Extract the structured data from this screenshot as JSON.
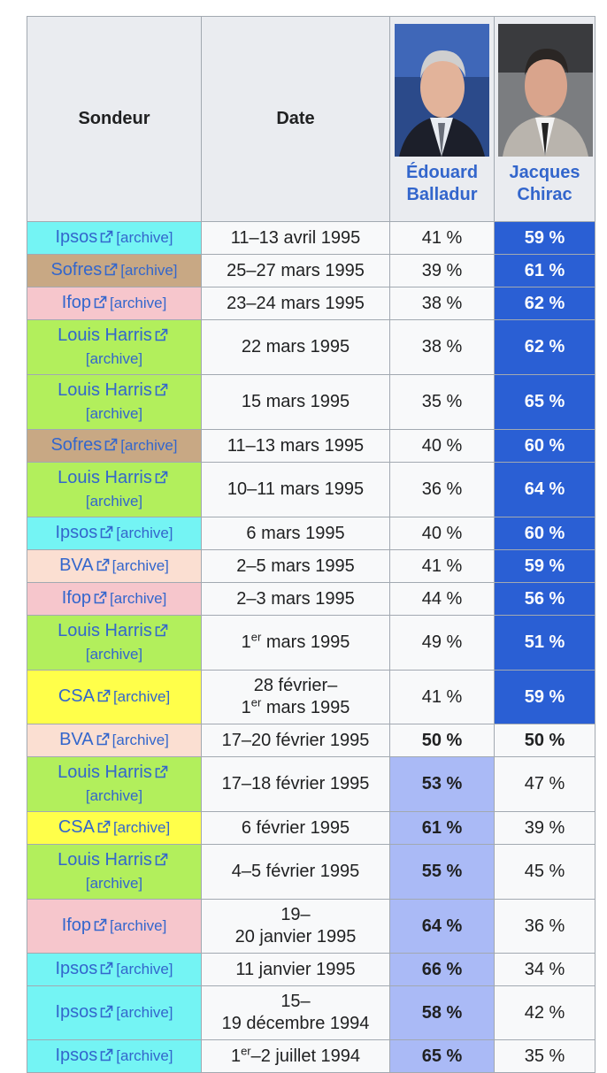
{
  "table": {
    "headers": [
      "Sondeur",
      "Date",
      "Édouard Balladur",
      "Jacques Chirac"
    ],
    "rows": [
      {
        "pollster": "Ipsos",
        "archive": "[archive]",
        "color": "#74f4f4",
        "date": "11–13 avril 1995",
        "balladur": {
          "text": "41 %"
        },
        "chirac": {
          "text": "59 %",
          "bg": "#2a5fd4",
          "fg": "#ffffff",
          "bold": true
        }
      },
      {
        "pollster": "Sofres",
        "archive": "[archive]",
        "color": "#c8a884",
        "date": "25–27 mars 1995",
        "balladur": {
          "text": "39 %"
        },
        "chirac": {
          "text": "61 %",
          "bg": "#2a5fd4",
          "fg": "#ffffff",
          "bold": true
        }
      },
      {
        "pollster": "Ifop",
        "archive": "[archive]",
        "color": "#f6c6cc",
        "date": "23–24 mars 1995",
        "balladur": {
          "text": "38 %"
        },
        "chirac": {
          "text": "62 %",
          "bg": "#2a5fd4",
          "fg": "#ffffff",
          "bold": true
        }
      },
      {
        "pollster": "Louis Harris",
        "archive": "[archive]",
        "color": "#b2ef5c",
        "date": "22 mars 1995",
        "balladur": {
          "text": "38 %"
        },
        "chirac": {
          "text": "62 %",
          "bg": "#2a5fd4",
          "fg": "#ffffff",
          "bold": true
        }
      },
      {
        "pollster": "Louis Harris",
        "archive": "[archive]",
        "color": "#b2ef5c",
        "date": "15 mars 1995",
        "balladur": {
          "text": "35 %"
        },
        "chirac": {
          "text": "65 %",
          "bg": "#2a5fd4",
          "fg": "#ffffff",
          "bold": true
        }
      },
      {
        "pollster": "Sofres",
        "archive": "[archive]",
        "color": "#c8a884",
        "date": "11–13 mars 1995",
        "balladur": {
          "text": "40 %"
        },
        "chirac": {
          "text": "60 %",
          "bg": "#2a5fd4",
          "fg": "#ffffff",
          "bold": true
        }
      },
      {
        "pollster": "Louis Harris",
        "archive": "[archive]",
        "color": "#b2ef5c",
        "date": "10–11 mars 1995",
        "balladur": {
          "text": "36 %"
        },
        "chirac": {
          "text": "64 %",
          "bg": "#2a5fd4",
          "fg": "#ffffff",
          "bold": true
        }
      },
      {
        "pollster": "Ipsos",
        "archive": "[archive]",
        "color": "#74f4f4",
        "date": "6 mars 1995",
        "balladur": {
          "text": "40 %"
        },
        "chirac": {
          "text": "60 %",
          "bg": "#2a5fd4",
          "fg": "#ffffff",
          "bold": true
        }
      },
      {
        "pollster": "BVA",
        "archive": "[archive]",
        "color": "#fbdfd2",
        "date": "2–5 mars 1995",
        "balladur": {
          "text": "41 %"
        },
        "chirac": {
          "text": "59 %",
          "bg": "#2a5fd4",
          "fg": "#ffffff",
          "bold": true
        }
      },
      {
        "pollster": "Ifop",
        "archive": "[archive]",
        "color": "#f6c6cc",
        "date": "2–3 mars 1995",
        "balladur": {
          "text": "44 %"
        },
        "chirac": {
          "text": "56 %",
          "bg": "#2a5fd4",
          "fg": "#ffffff",
          "bold": true
        }
      },
      {
        "pollster": "Louis Harris",
        "archive": "[archive]",
        "color": "#b2ef5c",
        "date": "1er mars 1995",
        "balladur": {
          "text": "49 %"
        },
        "chirac": {
          "text": "51 %",
          "bg": "#2a5fd4",
          "fg": "#ffffff",
          "bold": true
        }
      },
      {
        "pollster": "CSA",
        "archive": "[archive]",
        "color": "#ffff4a",
        "date": [
          "28 février–",
          "1er mars 1995"
        ],
        "balladur": {
          "text": "41 %"
        },
        "chirac": {
          "text": "59 %",
          "bg": "#2a5fd4",
          "fg": "#ffffff",
          "bold": true
        }
      },
      {
        "pollster": "BVA",
        "archive": "[archive]",
        "color": "#fbdfd2",
        "date": "17–20 février 1995",
        "balladur": {
          "text": "50 %",
          "bold": true
        },
        "chirac": {
          "text": "50 %",
          "bold": true
        }
      },
      {
        "pollster": "Louis Harris",
        "archive": "[archive]",
        "color": "#b2ef5c",
        "date": "17–18 février 1995",
        "balladur": {
          "text": "53 %",
          "bg": "#aabaf6",
          "bold": true
        },
        "chirac": {
          "text": "47 %"
        }
      },
      {
        "pollster": "CSA",
        "archive": "[archive]",
        "color": "#ffff4a",
        "date": "6 février 1995",
        "balladur": {
          "text": "61 %",
          "bg": "#aabaf6",
          "bold": true
        },
        "chirac": {
          "text": "39 %"
        }
      },
      {
        "pollster": "Louis Harris",
        "archive": "[archive]",
        "color": "#b2ef5c",
        "date": "4–5 février 1995",
        "balladur": {
          "text": "55 %",
          "bg": "#aabaf6",
          "bold": true
        },
        "chirac": {
          "text": "45 %"
        }
      },
      {
        "pollster": "Ifop",
        "archive": "[archive]",
        "color": "#f6c6cc",
        "date": [
          "19–",
          "20 janvier 1995"
        ],
        "balladur": {
          "text": "64 %",
          "bg": "#aabaf6",
          "bold": true
        },
        "chirac": {
          "text": "36 %"
        }
      },
      {
        "pollster": "Ipsos",
        "archive": "[archive]",
        "color": "#74f4f4",
        "date": "11 janvier 1995",
        "balladur": {
          "text": "66 %",
          "bg": "#aabaf6",
          "bold": true
        },
        "chirac": {
          "text": "34 %"
        }
      },
      {
        "pollster": "Ipsos",
        "archive": "[archive]",
        "color": "#74f4f4",
        "date": [
          "15–",
          "19 décembre 1994"
        ],
        "balladur": {
          "text": "58 %",
          "bg": "#aabaf6",
          "bold": true
        },
        "chirac": {
          "text": "42 %"
        }
      },
      {
        "pollster": "Ipsos",
        "archive": "[archive]",
        "color": "#74f4f4",
        "date": "1er–2 juillet 1994",
        "balladur": {
          "text": "65 %",
          "bg": "#aabaf6",
          "bold": true
        },
        "chirac": {
          "text": "35 %"
        }
      }
    ]
  }
}
